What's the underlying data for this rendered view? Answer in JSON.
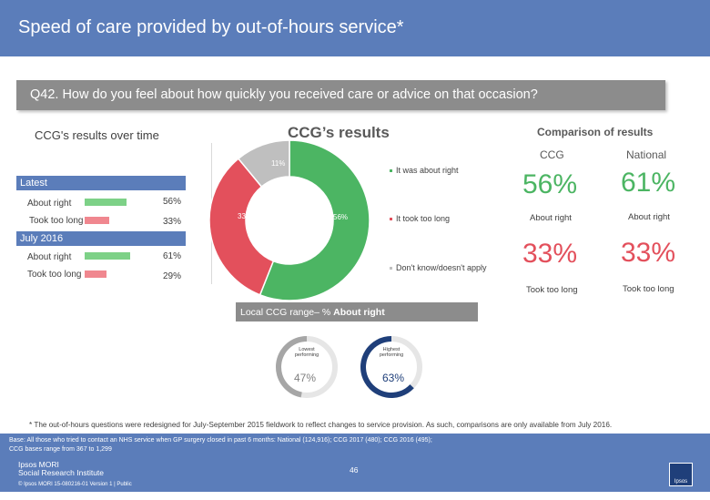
{
  "header": {
    "title": "Speed of care provided by out-of-hours service*"
  },
  "question": {
    "text": "Q42. How do you feel about how quickly you received care or advice on that occasion?"
  },
  "left_panel": {
    "title": "CCG's results over time",
    "groups": [
      {
        "name": "Latest",
        "rows": [
          {
            "label": "About right",
            "value": "56%",
            "pct": 56,
            "color": "green"
          },
          {
            "label": "Took too long",
            "value": "33%",
            "pct": 33,
            "color": "red"
          }
        ]
      },
      {
        "name": "July 2016",
        "rows": [
          {
            "label": "About right",
            "value": "61%",
            "pct": 61,
            "color": "green"
          },
          {
            "label": "Took too long",
            "value": "29%",
            "pct": 29,
            "color": "red"
          }
        ]
      }
    ]
  },
  "donut": {
    "title": "CCG’s results",
    "slices": [
      {
        "label": "It was about right",
        "value": 56,
        "display": "56%",
        "color": "#4cb563"
      },
      {
        "label": "It took too long",
        "value": 33,
        "display": "33%",
        "color": "#e3505c"
      },
      {
        "label": "Don't know/doesn't apply",
        "value": 11,
        "display": "11%",
        "color": "#bfbfbf"
      }
    ]
  },
  "comparison": {
    "title": "Comparison of results",
    "col_ccg": "CCG",
    "col_national": "National",
    "about_right": {
      "ccg": "56%",
      "national": "61%",
      "label": "About right"
    },
    "too_long": {
      "ccg": "33%",
      "national": "33%",
      "label": "Took too long"
    }
  },
  "range": {
    "title_prefix": "Local CCG range– % ",
    "title_bold": "About right",
    "lowest": {
      "label": "Lowest performing",
      "value": "47%",
      "pct": 47,
      "color": "#a6a6a6"
    },
    "highest": {
      "label": "Highest performing",
      "value": "63%",
      "pct": 63,
      "color": "#1f3f7a"
    }
  },
  "footnote": "* The out-of-hours questions were redesigned for July-September 2015 fieldwork to reflect changes to service provision. As such, comparisons are only available from July 2016.",
  "footer": {
    "base_line1": "Base: All those who tried to contact an NHS service when GP surgery closed in past 6 months: National (124,916); CCG 2017 (480); CCG 2016 (495);",
    "base_line2": "CCG bases range from 367 to 1,299",
    "logo_line1": "Ipsos MORI",
    "logo_line2": "Social Research Institute",
    "page": "46",
    "copyright": "© Ipsos MORI     15-080216-01 Version 1 | Public",
    "badge": "Ipsos"
  },
  "colors": {
    "brand_blue": "#5b7dba",
    "green": "#4cb563",
    "red": "#e3505c",
    "grey": "#bfbfbf",
    "navy": "#1f3f7a"
  }
}
